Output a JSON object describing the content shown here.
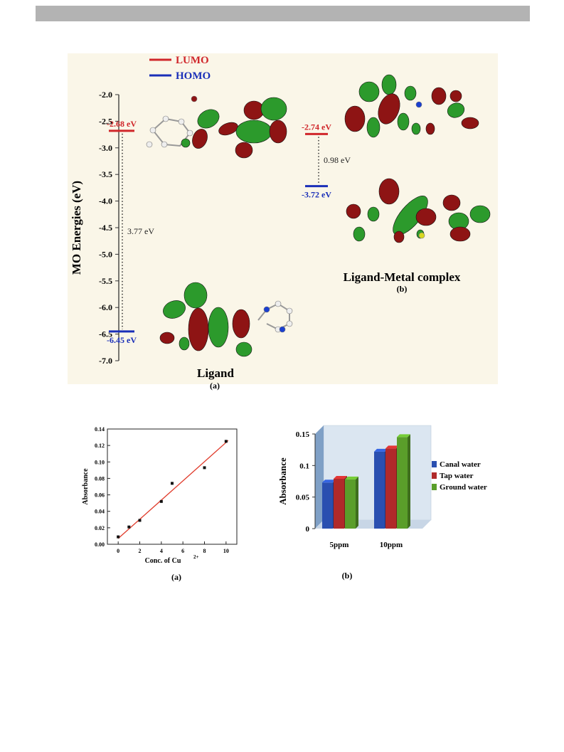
{
  "chart_data": [
    {
      "type": "line",
      "chart": "mo-energy-diagram",
      "legend": [
        {
          "name": "LUMO",
          "color": "#d0262a"
        },
        {
          "name": "HOMO",
          "color": "#1a2fb8"
        }
      ],
      "ylabel": "MO Energies (eV)",
      "ylim": [
        -7.0,
        -2.0
      ],
      "yticks": [
        "-2.0",
        "-2.5",
        "-3.0",
        "-3.5",
        "-4.0",
        "-4.5",
        "-5.0",
        "-5.5",
        "-6.0",
        "-6.5",
        "-7.0"
      ],
      "levels": [
        {
          "system": "Ligand",
          "orbital": "LUMO",
          "energy": -2.68,
          "label": "-2.68 eV"
        },
        {
          "system": "Ligand",
          "orbital": "HOMO",
          "energy": -6.45,
          "label": "-6.45 eV"
        },
        {
          "system": "Ligand-Metal complex",
          "orbital": "LUMO",
          "energy": -2.74,
          "label": "-2.74 eV"
        },
        {
          "system": "Ligand-Metal complex",
          "orbital": "HOMO",
          "energy": -3.72,
          "label": "-3.72 eV"
        }
      ],
      "gaps": [
        {
          "system": "Ligand",
          "value": 3.77,
          "label": "3.77 eV"
        },
        {
          "system": "Ligand-Metal complex",
          "value": 0.98,
          "label": "0.98 eV"
        }
      ],
      "annotations": {
        "ligand": "Ligand",
        "ligand_sub": "(a)",
        "complex": "Ligand-Metal complex",
        "complex_sub": "(b)"
      }
    },
    {
      "type": "scatter",
      "chart": "absorbance-calibration",
      "xlabel": "Conc. of Cu",
      "xlabel_sup": "2+",
      "ylabel": "Absorbance",
      "xlim": [
        -1,
        11
      ],
      "ylim": [
        0,
        0.14
      ],
      "xticks": [
        "0",
        "2",
        "4",
        "6",
        "8",
        "10"
      ],
      "yticks": [
        "0.00",
        "0.02",
        "0.04",
        "0.06",
        "0.08",
        "0.10",
        "0.12",
        "0.14"
      ],
      "points": [
        [
          0,
          0.009
        ],
        [
          1,
          0.021
        ],
        [
          2,
          0.029
        ],
        [
          4,
          0.052
        ],
        [
          5,
          0.074
        ],
        [
          8,
          0.093
        ],
        [
          10,
          0.125
        ]
      ],
      "fit": {
        "x": [
          0,
          10.2
        ],
        "y": [
          0.007,
          0.126
        ],
        "color": "#e03a2a"
      },
      "caption": "(a)"
    },
    {
      "type": "bar",
      "chart": "water-samples",
      "categories": [
        "5ppm",
        "10ppm"
      ],
      "series": [
        {
          "name": "Canal water",
          "values": [
            0.073,
            0.122
          ],
          "color": "#2a4fb0"
        },
        {
          "name": "Tap water",
          "values": [
            0.079,
            0.127
          ],
          "color": "#b02a2a"
        },
        {
          "name": "Ground water",
          "values": [
            0.078,
            0.145
          ],
          "color": "#5a9e2a"
        }
      ],
      "ylabel": "Absorbance",
      "ylim": [
        0,
        0.15
      ],
      "yticks": [
        "0",
        "0.05",
        "0.1",
        "0.15"
      ],
      "legend_position": "right",
      "caption": "(b)"
    }
  ]
}
